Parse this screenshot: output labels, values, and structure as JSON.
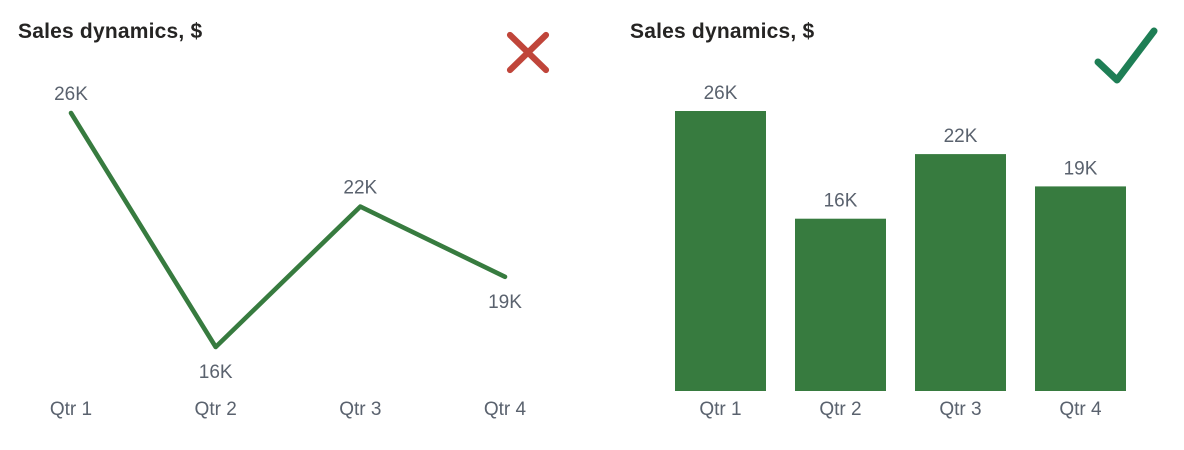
{
  "colors": {
    "series_green": "#377B3F",
    "label_gray": "#5A626E",
    "title_color": "#252423",
    "reject_red": "#C0453A",
    "accept_green": "#1E7E55",
    "background": "#FFFFFF"
  },
  "left_panel": {
    "title": "Sales dynamics, $",
    "status_icon": "x-mark",
    "verdict": "rejected-example"
  },
  "right_panel": {
    "title": "Sales dynamics, $",
    "status_icon": "check-mark",
    "verdict": "approved-example"
  },
  "chart_data": [
    {
      "type": "line",
      "title": "Sales dynamics, $",
      "categories": [
        "Qtr 1",
        "Qtr 2",
        "Qtr 3",
        "Qtr 4"
      ],
      "values": [
        26000,
        16000,
        22000,
        19000
      ],
      "data_labels": [
        "26K",
        "16K",
        "22K",
        "19K"
      ],
      "label_placement": [
        "above",
        "below",
        "above",
        "below"
      ],
      "xlabel": "",
      "ylabel": "",
      "ylim": [
        16000,
        26000
      ],
      "grid": false,
      "legend": false,
      "axes_hidden": true
    },
    {
      "type": "bar",
      "title": "Sales dynamics, $",
      "categories": [
        "Qtr 1",
        "Qtr 2",
        "Qtr 3",
        "Qtr 4"
      ],
      "values": [
        26000,
        16000,
        22000,
        19000
      ],
      "data_labels": [
        "26K",
        "16K",
        "22K",
        "19K"
      ],
      "xlabel": "",
      "ylabel": "",
      "ylim": [
        0,
        28000
      ],
      "grid": false,
      "legend": false,
      "axes_hidden": true
    }
  ]
}
